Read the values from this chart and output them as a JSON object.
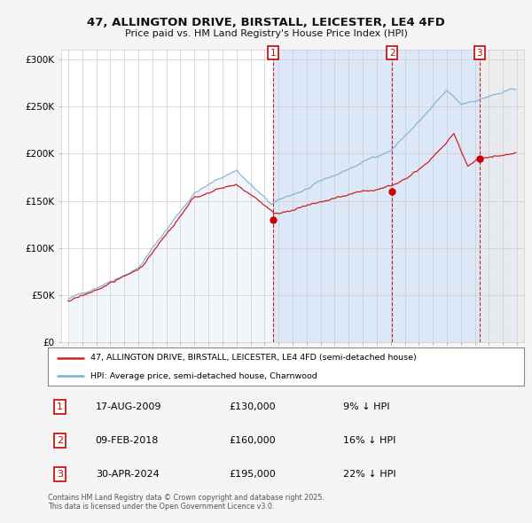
{
  "title": "47, ALLINGTON DRIVE, BIRSTALL, LEICESTER, LE4 4FD",
  "subtitle": "Price paid vs. HM Land Registry's House Price Index (HPI)",
  "background_color": "#f5f5f5",
  "plot_bg_color": "#ffffff",
  "grid_color": "#cccccc",
  "hpi_fill_color": "#dce8f8",
  "shade_color": "#dce8f8",
  "hatch_color": "#cccccc",
  "xlim_year_min": 1994.5,
  "xlim_year_max": 2027.5,
  "ylim_min": 0,
  "ylim_max": 310000,
  "yticks": [
    0,
    50000,
    100000,
    150000,
    200000,
    250000,
    300000
  ],
  "ytick_labels": [
    "£0",
    "£50K",
    "£100K",
    "£150K",
    "£200K",
    "£250K",
    "£300K"
  ],
  "sale_dates_year": [
    2009.63,
    2018.1,
    2024.33
  ],
  "sale_prices": [
    130000,
    160000,
    195000
  ],
  "sale_labels": [
    "1",
    "2",
    "3"
  ],
  "sale_marker_color": "#cc0000",
  "hpi_line_color": "#7ab0d4",
  "price_line_color": "#cc2222",
  "legend_entries": [
    "47, ALLINGTON DRIVE, BIRSTALL, LEICESTER, LE4 4FD (semi-detached house)",
    "HPI: Average price, semi-detached house, Charnwood"
  ],
  "table_entries": [
    {
      "label": "1",
      "date": "17-AUG-2009",
      "price": "£130,000",
      "hpi": "9% ↓ HPI"
    },
    {
      "label": "2",
      "date": "09-FEB-2018",
      "price": "£160,000",
      "hpi": "16% ↓ HPI"
    },
    {
      "label": "3",
      "date": "30-APR-2024",
      "price": "£195,000",
      "hpi": "22% ↓ HPI"
    }
  ],
  "footer": "Contains HM Land Registry data © Crown copyright and database right 2025.\nThis data is licensed under the Open Government Licence v3.0."
}
